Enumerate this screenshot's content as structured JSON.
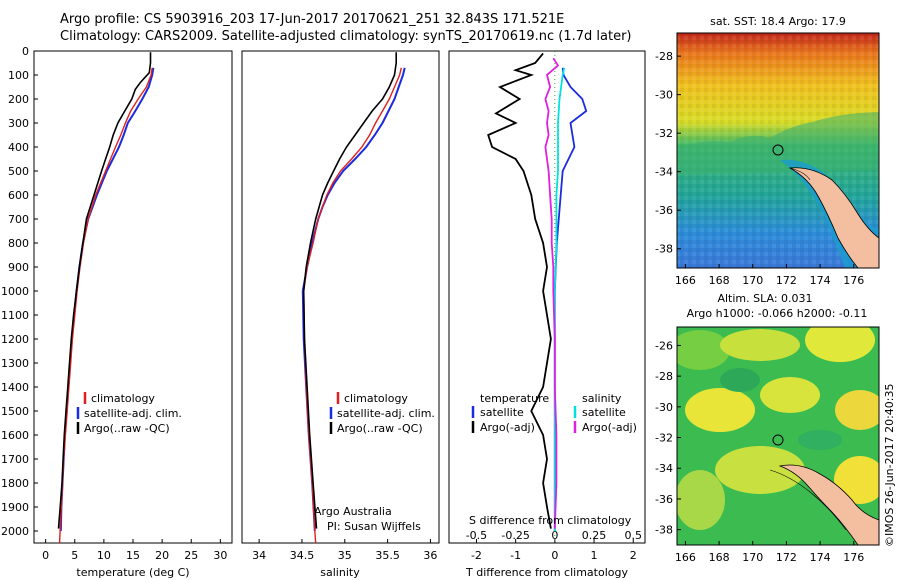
{
  "header": {
    "line1": "Argo profile: CS 5903916_203 17-Jun-2017 20170621_251 32.843S 171.521E",
    "line2": "Climatology: CARS2009. Satellite-adjusted climatology: synTS_20170619.nc (1.7d later)"
  },
  "colors": {
    "climatology": "#e02020",
    "satellite": "#1a2be0",
    "argo": "#000000",
    "salinity_sat": "#00e0e0",
    "salinity_argo": "#e020e0"
  },
  "depth_ticks": [
    "0",
    "100",
    "200",
    "300",
    "400",
    "500",
    "600",
    "700",
    "800",
    "900",
    "1000",
    "1100",
    "1200",
    "1300",
    "1400",
    "1500",
    "1600",
    "1700",
    "1800",
    "1900",
    "2000"
  ],
  "chart_data": [
    {
      "type": "line",
      "id": "temperature",
      "xlabel": "temperature (deg C)",
      "ylabel": "",
      "xlim": [
        -2,
        32
      ],
      "ylim": [
        2050,
        0
      ],
      "x_ticks": [
        "0",
        "5",
        "10",
        "15",
        "20",
        "25",
        "30"
      ],
      "legend": [
        "climatology",
        "satellite-adj. clim.",
        "Argo(..raw -QC)"
      ],
      "series": [
        {
          "name": "climatology",
          "depth": [
            70,
            100,
            150,
            200,
            250,
            300,
            350,
            400,
            500,
            600,
            700,
            800,
            900,
            1000,
            1100,
            1200,
            1300,
            1400,
            1500,
            1600,
            1700,
            1800,
            1900,
            1990,
            2050
          ],
          "values": [
            18.3,
            18.1,
            17.3,
            15.9,
            14.6,
            13.7,
            12.9,
            12.0,
            10.3,
            8.6,
            7.3,
            6.5,
            5.9,
            5.4,
            5.0,
            4.6,
            4.3,
            4.0,
            3.7,
            3.4,
            3.1,
            2.9,
            2.7,
            2.5,
            2.4
          ]
        },
        {
          "name": "satellite-adj. clim.",
          "depth": [
            70,
            100,
            150,
            200,
            250,
            300,
            350,
            400,
            500,
            600,
            700,
            800,
            900,
            1000,
            1100,
            1200,
            1300,
            1400,
            1500,
            1600,
            1700,
            1800,
            1900,
            2000
          ],
          "values": [
            18.5,
            18.3,
            17.7,
            16.6,
            15.4,
            14.1,
            13.4,
            12.6,
            10.5,
            8.8,
            7.3,
            6.4,
            5.8,
            5.3,
            4.9,
            4.5,
            4.2,
            3.9,
            3.6,
            3.3,
            3.1,
            2.9,
            2.7,
            2.6
          ]
        },
        {
          "name": "Argo(..raw -QC)",
          "depth": [
            5,
            50,
            90,
            130,
            160,
            200,
            250,
            300,
            350,
            400,
            450,
            500,
            600,
            700,
            800,
            900,
            1000,
            1100,
            1200,
            1300,
            1400,
            1500,
            1600,
            1700,
            1800,
            1900,
            1990
          ],
          "values": [
            18.0,
            18.0,
            17.8,
            16.3,
            15.4,
            14.8,
            13.6,
            12.4,
            11.6,
            11.0,
            10.3,
            9.6,
            8.3,
            7.0,
            6.4,
            5.8,
            5.3,
            4.8,
            4.4,
            4.1,
            3.8,
            3.5,
            3.2,
            3.0,
            2.8,
            2.5,
            2.2
          ]
        }
      ]
    },
    {
      "type": "line",
      "id": "salinity",
      "xlabel": "salinity",
      "ylabel": "",
      "xlim": [
        33.8,
        36.1
      ],
      "ylim": [
        2050,
        0
      ],
      "x_ticks": [
        "34",
        "34.5",
        "35",
        "35.5",
        "36"
      ],
      "legend": [
        "climatology",
        "satellite-adj. clim.",
        "Argo(..raw -QC)"
      ],
      "annotation": [
        "Argo Australia",
        "PI: Susan Wijffels"
      ],
      "series": [
        {
          "name": "climatology",
          "depth": [
            70,
            100,
            150,
            200,
            250,
            300,
            350,
            400,
            450,
            500,
            550,
            600,
            650,
            700,
            800,
            900,
            1000,
            1200,
            1400,
            1600,
            1800,
            2000,
            2050
          ],
          "values": [
            35.66,
            35.64,
            35.58,
            35.52,
            35.44,
            35.36,
            35.29,
            35.2,
            35.08,
            34.95,
            34.86,
            34.79,
            34.74,
            34.69,
            34.63,
            34.56,
            34.52,
            34.53,
            34.55,
            34.58,
            34.62,
            34.65,
            34.66
          ]
        },
        {
          "name": "satellite-adj. clim.",
          "depth": [
            70,
            100,
            150,
            200,
            250,
            300,
            350,
            400,
            450,
            500,
            550,
            600,
            650,
            700,
            800,
            900,
            1000,
            1200,
            1400,
            1600,
            1800,
            2000
          ],
          "values": [
            35.7,
            35.68,
            35.63,
            35.58,
            35.51,
            35.44,
            35.35,
            35.25,
            35.12,
            34.98,
            34.88,
            34.8,
            34.74,
            34.69,
            34.62,
            34.56,
            34.51,
            34.52,
            34.55,
            34.58,
            34.62,
            34.65
          ]
        },
        {
          "name": "Argo(..raw -QC)",
          "depth": [
            5,
            50,
            100,
            150,
            200,
            250,
            300,
            350,
            400,
            450,
            500,
            550,
            600,
            650,
            700,
            800,
            900,
            1000,
            1200,
            1400,
            1600,
            1800,
            1990
          ],
          "values": [
            35.6,
            35.6,
            35.58,
            35.52,
            35.44,
            35.32,
            35.22,
            35.12,
            35.02,
            34.94,
            34.87,
            34.8,
            34.74,
            34.7,
            34.66,
            34.6,
            34.55,
            34.52,
            34.53,
            34.56,
            34.59,
            34.63,
            34.67
          ]
        }
      ]
    },
    {
      "type": "line",
      "id": "difference",
      "xlabel": "T difference from climatology",
      "ylabel": "",
      "top_label": "S difference from climatology",
      "xlim": [
        -2.7,
        2.3
      ],
      "ylim": [
        2050,
        0
      ],
      "x_ticks": [
        "-2",
        "-1",
        "0",
        "1",
        "2"
      ],
      "top_ticks": [
        "-0.5",
        "-0.25",
        "0",
        "0.25",
        "0.5"
      ],
      "legend_t": [
        "temperature",
        "satellite",
        "Argo(-adj)"
      ],
      "legend_s": [
        "salinity",
        "satellite",
        "Argo(-adj)"
      ],
      "series": [
        {
          "name": "satellite",
          "group": "temperature",
          "depth": [
            70,
            100,
            150,
            200,
            250,
            300,
            400,
            500,
            600,
            800,
            1000,
            1200,
            1400,
            1600,
            1800,
            2000
          ],
          "values": [
            0.2,
            0.22,
            0.4,
            0.7,
            0.8,
            0.4,
            0.5,
            0.2,
            0.15,
            0.05,
            0.0,
            0.0,
            0.0,
            0.0,
            0.0,
            0.0
          ]
        },
        {
          "name": "Argo(-adj)",
          "group": "temperature",
          "depth": [
            10,
            50,
            80,
            100,
            150,
            200,
            260,
            300,
            350,
            400,
            450,
            500,
            600,
            700,
            800,
            900,
            1000,
            1100,
            1200,
            1300,
            1400,
            1500,
            1600,
            1700,
            1800,
            1900,
            1990
          ],
          "values": [
            -0.3,
            -0.5,
            -1.0,
            -0.6,
            -1.4,
            -0.9,
            -1.5,
            -1.0,
            -1.7,
            -1.6,
            -1.0,
            -0.8,
            -0.6,
            -0.5,
            -0.3,
            -0.2,
            -0.3,
            -0.2,
            -0.1,
            -0.2,
            -0.3,
            -0.6,
            -0.3,
            -0.2,
            -0.3,
            -0.2,
            -0.1
          ]
        },
        {
          "name": "satellite",
          "group": "salinity",
          "depth": [
            70,
            100,
            200,
            300,
            400,
            500,
            600,
            800,
            1000,
            1200,
            1400,
            1600,
            1800,
            2000
          ],
          "values": [
            0.06,
            0.05,
            0.03,
            0.02,
            0.02,
            0.02,
            0.01,
            0.01,
            0.0,
            0.0,
            0.0,
            0.0,
            0.0,
            0.0
          ]
        },
        {
          "name": "Argo(-adj)",
          "group": "salinity",
          "depth": [
            30,
            60,
            100,
            150,
            200,
            250,
            300,
            350,
            400,
            450,
            500,
            600,
            700,
            800,
            900,
            1000,
            1200,
            1400,
            1600,
            1800,
            1990
          ],
          "values": [
            -0.01,
            0.02,
            -0.05,
            -0.03,
            -0.06,
            -0.04,
            -0.05,
            -0.04,
            -0.06,
            -0.05,
            -0.04,
            -0.03,
            -0.02,
            -0.02,
            -0.01,
            -0.01,
            0.0,
            0.0,
            0.01,
            0.01,
            0.0
          ]
        }
      ]
    },
    {
      "type": "heatmap",
      "id": "sst_map",
      "title": "sat. SST: 18.4  Argo: 17.9",
      "x_ticks": [
        "166",
        "168",
        "170",
        "172",
        "174",
        "176"
      ],
      "y_ticks": [
        "-28",
        "-30",
        "-32",
        "-34",
        "-36",
        "-38"
      ],
      "xlim": [
        165.5,
        177.5
      ],
      "ylim": [
        -39.0,
        -26.8
      ]
    },
    {
      "type": "heatmap",
      "id": "sla_map",
      "title": "Altim. SLA: 0.031",
      "subtitle": "Argo h1000: -0.066  h2000: -0.11",
      "x_ticks": [
        "166",
        "168",
        "170",
        "172",
        "174",
        "176"
      ],
      "y_ticks": [
        "-26",
        "-28",
        "-30",
        "-32",
        "-34",
        "-36",
        "-38"
      ],
      "xlim": [
        165.5,
        177.5
      ],
      "ylim": [
        -39.0,
        -24.8
      ]
    }
  ],
  "credit": "©IMOS 26-Jun-2017 20:40:35"
}
